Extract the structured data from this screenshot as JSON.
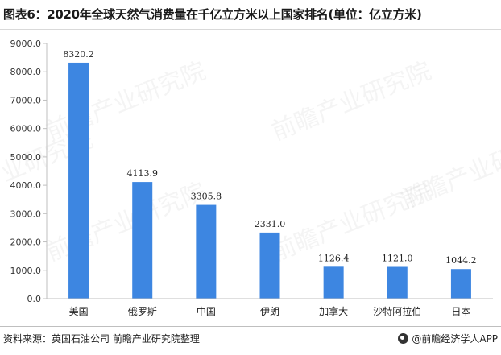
{
  "page": {
    "title": "图表6：2020年全球天然气消费量在千亿立方米以上国家排名(单位：亿立方米)",
    "source": "资料来源：英国石油公司 前瞻产业研究院整理",
    "brand": "@前瞻经济学人APP",
    "watermark": "前瞻产业研究院"
  },
  "chart_data": {
    "type": "bar",
    "title": "图表6：2020年全球天然气消费量在千亿立方米以上国家排名(单位：亿立方米)",
    "categories": [
      "美国",
      "俄罗斯",
      "中国",
      "伊朗",
      "加拿大",
      "沙特阿拉伯",
      "日本"
    ],
    "values": [
      8320.2,
      4113.9,
      3305.8,
      2331.0,
      1126.4,
      1121.0,
      1044.2
    ],
    "data_labels": [
      "8320.2",
      "4113.9",
      "3305.8",
      "2331.0",
      "1126.4",
      "1121.0",
      "1044.2"
    ],
    "yticks": [
      "0.0",
      "1000.0",
      "2000.0",
      "3000.0",
      "4000.0",
      "5000.0",
      "6000.0",
      "7000.0",
      "8000.0",
      "9000.0"
    ],
    "ylim": [
      0,
      9000
    ],
    "grid": false,
    "bar_color": "#3d86e1",
    "axis_color": "#bfbfbf"
  }
}
